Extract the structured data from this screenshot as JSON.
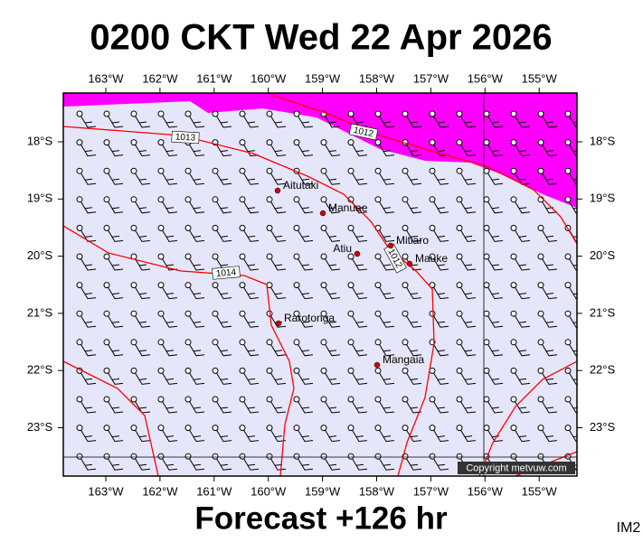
{
  "header": {
    "title": "0200 CKT Wed 22 Apr 2026"
  },
  "map": {
    "lon_labels": [
      "163°W",
      "162°W",
      "161°W",
      "160°W",
      "159°W",
      "158°W",
      "157°W",
      "156°W",
      "155°W"
    ],
    "lat_labels": [
      "18°S",
      "19°S",
      "20°S",
      "21°S",
      "22°S",
      "23°S"
    ],
    "isobar_labels": [
      "1013",
      "1012",
      "1014",
      "1012"
    ],
    "places": [
      "Aitutaki",
      "Manuae",
      "Atiu",
      "Mitiaro",
      "Mauke",
      "Rarotonga",
      "Mangaia"
    ],
    "copyright": "Copyright metvuw.com"
  },
  "footer": {
    "forecast": "Forecast +126 hr",
    "code": "IM2"
  }
}
